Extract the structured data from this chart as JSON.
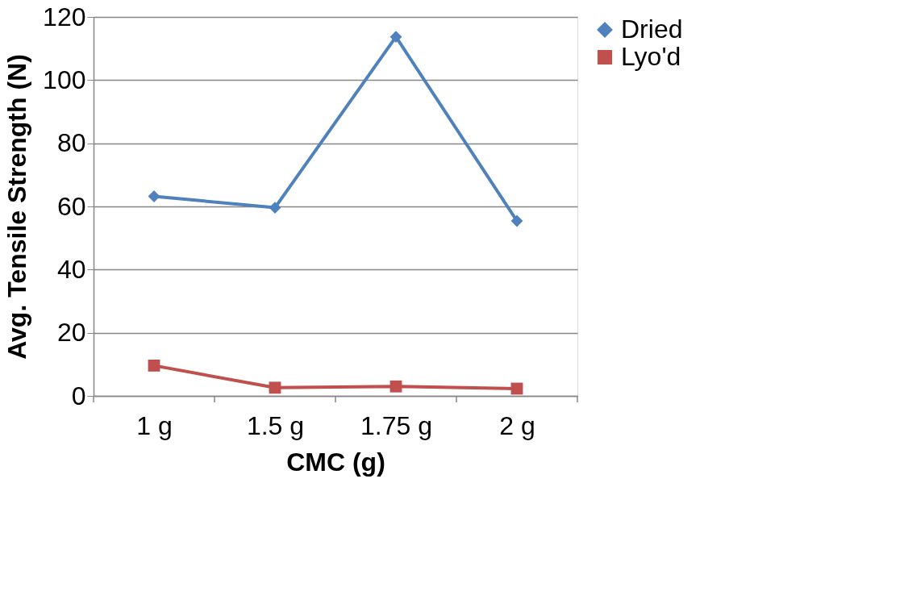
{
  "chart_data": {
    "type": "line",
    "xlabel": "CMC (g)",
    "ylabel": "Avg. Tensile Strength (N)",
    "categories": [
      "1 g",
      "1.5 g",
      "1.75 g",
      "2 g"
    ],
    "series": [
      {
        "name": "Dried",
        "color": "#4f81bd",
        "marker": "diamond",
        "values": [
          63.2,
          59.6,
          113.7,
          55.4
        ]
      },
      {
        "name": "Lyo'd",
        "color": "#c0504d",
        "marker": "square",
        "values": [
          9.6,
          2.6,
          3.0,
          2.3
        ]
      }
    ],
    "ylim": [
      0,
      120
    ],
    "yticks": [
      0,
      20,
      40,
      60,
      80,
      100,
      120
    ],
    "grid": "y",
    "legend": "right",
    "line_style": "solid"
  }
}
